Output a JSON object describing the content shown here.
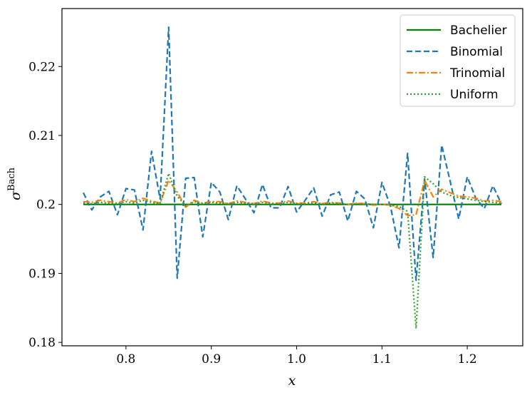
{
  "chart_data": {
    "type": "line",
    "xlabel": "x",
    "ylabel": "σ",
    "ylabel_superscript": "Bach",
    "xlim": [
      0.725,
      1.265
    ],
    "ylim": [
      0.1795,
      0.2284
    ],
    "xticks": [
      0.8,
      0.9,
      1.0,
      1.1,
      1.2
    ],
    "xtick_labels": [
      "0.8",
      "0.9",
      "1.0",
      "1.1",
      "1.2"
    ],
    "yticks": [
      0.18,
      0.19,
      0.2,
      0.21,
      0.22
    ],
    "ytick_labels": [
      "0.18",
      "0.19",
      "0.2",
      "0.21",
      "0.22"
    ],
    "grid": false,
    "legend_position": "top-right",
    "series": [
      {
        "name": "Bachelier",
        "color": "#008000",
        "style": "solid",
        "x": [
          0.75,
          1.24
        ],
        "y": [
          0.2,
          0.2
        ]
      },
      {
        "name": "Binomial",
        "color": "#1f77b4",
        "style": "dashed",
        "x": [
          0.75,
          0.76,
          0.77,
          0.78,
          0.79,
          0.8,
          0.81,
          0.82,
          0.83,
          0.84,
          0.85,
          0.86,
          0.87,
          0.88,
          0.89,
          0.9,
          0.91,
          0.92,
          0.93,
          0.94,
          0.95,
          0.96,
          0.97,
          0.98,
          0.99,
          1.0,
          1.01,
          1.02,
          1.03,
          1.04,
          1.05,
          1.06,
          1.07,
          1.08,
          1.09,
          1.1,
          1.11,
          1.12,
          1.13,
          1.14,
          1.15,
          1.16,
          1.17,
          1.18,
          1.19,
          1.2,
          1.21,
          1.22,
          1.23,
          1.24
        ],
        "y": [
          0.2017,
          0.1992,
          0.2011,
          0.2019,
          0.1985,
          0.2023,
          0.2021,
          0.1963,
          0.2077,
          0.2008,
          0.2257,
          0.1893,
          0.2038,
          0.2039,
          0.1953,
          0.2032,
          0.2018,
          0.1978,
          0.2027,
          0.2008,
          0.1988,
          0.2029,
          0.1995,
          0.1995,
          0.2026,
          0.1989,
          0.2006,
          0.2024,
          0.1983,
          0.2014,
          0.2018,
          0.1976,
          0.2019,
          0.2008,
          0.1966,
          0.2032,
          0.1997,
          0.1937,
          0.2074,
          0.189,
          0.2037,
          0.1923,
          0.2086,
          0.2033,
          0.1979,
          0.204,
          0.2009,
          0.1994,
          0.2027,
          0.2001
        ]
      },
      {
        "name": "Trinomial",
        "color": "#ff7f0e",
        "style": "dashdot",
        "x": [
          0.75,
          0.76,
          0.77,
          0.78,
          0.79,
          0.8,
          0.81,
          0.82,
          0.83,
          0.84,
          0.85,
          0.86,
          0.87,
          0.88,
          0.89,
          0.9,
          0.91,
          0.92,
          0.93,
          0.94,
          0.95,
          0.96,
          0.97,
          0.98,
          0.99,
          1.0,
          1.01,
          1.02,
          1.03,
          1.04,
          1.05,
          1.06,
          1.07,
          1.08,
          1.09,
          1.1,
          1.11,
          1.12,
          1.13,
          1.14,
          1.15,
          1.16,
          1.17,
          1.18,
          1.19,
          1.2,
          1.21,
          1.22,
          1.23,
          1.24
        ],
        "y": [
          0.2004,
          0.2003,
          0.2006,
          0.2004,
          0.2002,
          0.2007,
          0.2004,
          0.2009,
          0.2005,
          0.2002,
          0.2035,
          0.2018,
          0.1996,
          0.2006,
          0.2002,
          0.2004,
          0.2004,
          0.2001,
          0.2005,
          0.2003,
          0.2001,
          0.2005,
          0.2002,
          0.2002,
          0.2005,
          0.2002,
          0.2002,
          0.2004,
          0.2001,
          0.2003,
          0.2002,
          0.2,
          0.2002,
          0.2001,
          0.1999,
          0.2,
          0.1999,
          0.1994,
          0.1984,
          0.1985,
          0.2035,
          0.2011,
          0.2022,
          0.2017,
          0.2012,
          0.2011,
          0.2009,
          0.2005,
          0.2006,
          0.2004
        ]
      },
      {
        "name": "Uniform",
        "color": "#2ca02c",
        "style": "dotted",
        "x": [
          0.75,
          0.76,
          0.77,
          0.78,
          0.79,
          0.8,
          0.81,
          0.82,
          0.83,
          0.84,
          0.85,
          0.86,
          0.87,
          0.88,
          0.89,
          0.9,
          0.91,
          0.92,
          0.93,
          0.94,
          0.95,
          0.96,
          0.97,
          0.98,
          0.99,
          1.0,
          1.01,
          1.02,
          1.03,
          1.04,
          1.05,
          1.06,
          1.07,
          1.08,
          1.09,
          1.1,
          1.11,
          1.12,
          1.13,
          1.14,
          1.15,
          1.16,
          1.17,
          1.18,
          1.19,
          1.2,
          1.21,
          1.22,
          1.23,
          1.24
        ],
        "y": [
          0.2002,
          0.2001,
          0.2003,
          0.2002,
          0.2001,
          0.2004,
          0.2002,
          0.2006,
          0.2003,
          0.2001,
          0.2045,
          0.2012,
          0.1998,
          0.2004,
          0.2001,
          0.2003,
          0.2002,
          0.2001,
          0.2003,
          0.2002,
          0.2001,
          0.2003,
          0.2001,
          0.2001,
          0.2003,
          0.2001,
          0.2001,
          0.2002,
          0.2001,
          0.2002,
          0.2001,
          0.2,
          0.2001,
          0.2001,
          0.2,
          0.2,
          0.1999,
          0.1997,
          0.199,
          0.182,
          0.204,
          0.203,
          0.2018,
          0.2013,
          0.201,
          0.2008,
          0.2006,
          0.2004,
          0.2003,
          0.2002
        ]
      }
    ]
  }
}
